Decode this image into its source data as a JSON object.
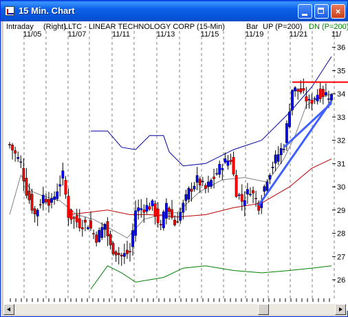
{
  "window": {
    "title": "15 Min. Chart",
    "buttons": {
      "minimize": "",
      "maximize": "",
      "close": "×"
    }
  },
  "header": {
    "mode": "Intraday",
    "scale_side": "(Right)",
    "symbol_line": "LLTC - LINEAR TECHNOLOGY CORP  (15-Min)",
    "chart_style": "Bar",
    "up_label": "UP (P=200)",
    "down_label": "DN (P=200)"
  },
  "colors": {
    "up_bar": "#0000ff",
    "down_bar": "#ff0000",
    "upper_band": "#0000a0",
    "lower_band": "#008000",
    "long_ma": "#c00000",
    "short_ma": "#808080",
    "resistance": "#ff0000",
    "trendline": "#4060ff",
    "up_label": "#000000",
    "down_label": "#008000"
  },
  "chart_data": {
    "type": "candlestick",
    "x_tick_labels": [
      "11/05",
      "11/07",
      "11/11",
      "11/13",
      "11/15",
      "11/19",
      "11/21",
      "11/"
    ],
    "y_tick_labels": [
      "36",
      "35",
      "34",
      "33",
      "32",
      "31",
      "30",
      "29",
      "28",
      "27",
      "26"
    ],
    "ylim": [
      25.2,
      36.7
    ],
    "grid": "vertical dashed",
    "price_path": [
      [
        0,
        31.8
      ],
      [
        4,
        31.0
      ],
      [
        6,
        29.8
      ],
      [
        9,
        28.8
      ],
      [
        12,
        29.6
      ],
      [
        15,
        29.3
      ],
      [
        19,
        30.5
      ],
      [
        21,
        28.8
      ],
      [
        25,
        28.4
      ],
      [
        28,
        28.4
      ],
      [
        31,
        27.8
      ],
      [
        34,
        28.4
      ],
      [
        36,
        27.4
      ],
      [
        40,
        27.0
      ],
      [
        43,
        27.2
      ],
      [
        45,
        29.0
      ],
      [
        48,
        29.1
      ],
      [
        51,
        29.2
      ],
      [
        54,
        28.2
      ],
      [
        56,
        29.3
      ],
      [
        59,
        28.4
      ],
      [
        61,
        28.9
      ],
      [
        64,
        29.8
      ],
      [
        67,
        30.3
      ],
      [
        70,
        29.9
      ],
      [
        73,
        30.4
      ],
      [
        76,
        31.0
      ],
      [
        79,
        31.2
      ],
      [
        81,
        29.8
      ],
      [
        83,
        29.4
      ],
      [
        86,
        29.9
      ],
      [
        89,
        29.2
      ],
      [
        92,
        30.4
      ],
      [
        95,
        31.2
      ],
      [
        98,
        31.8
      ],
      [
        101,
        34.2
      ],
      [
        104,
        34.1
      ],
      [
        107,
        33.6
      ],
      [
        110,
        34.0
      ],
      [
        113,
        34.0
      ],
      [
        115,
        33.9
      ]
    ],
    "bars": 116,
    "overlays": {
      "upper_band": [
        [
          29,
          32.4
        ],
        [
          35,
          32.4
        ],
        [
          40,
          31.7
        ],
        [
          45,
          31.6
        ],
        [
          50,
          32.2
        ],
        [
          55,
          32.2
        ],
        [
          57,
          31.5
        ],
        [
          62,
          30.9
        ],
        [
          70,
          31.0
        ],
        [
          80,
          31.6
        ],
        [
          90,
          32.0
        ],
        [
          100,
          33.2
        ],
        [
          108,
          34.3
        ],
        [
          115,
          35.6
        ]
      ],
      "lower_band": [
        [
          29,
          25.6
        ],
        [
          35,
          26.6
        ],
        [
          40,
          26.3
        ],
        [
          45,
          25.9
        ],
        [
          50,
          26.0
        ],
        [
          55,
          26.1
        ],
        [
          62,
          26.5
        ],
        [
          70,
          26.6
        ],
        [
          80,
          26.4
        ],
        [
          90,
          26.3
        ],
        [
          100,
          26.4
        ],
        [
          108,
          26.5
        ],
        [
          115,
          26.6
        ]
      ],
      "long_ma": [
        [
          21,
          28.8
        ],
        [
          28,
          28.9
        ],
        [
          35,
          29.0
        ],
        [
          43,
          28.8
        ],
        [
          50,
          28.8
        ],
        [
          60,
          28.7
        ],
        [
          70,
          28.8
        ],
        [
          80,
          29.1
        ],
        [
          90,
          29.3
        ],
        [
          100,
          30.0
        ],
        [
          108,
          30.8
        ],
        [
          115,
          31.2
        ]
      ],
      "short_ma": [
        [
          0,
          28.8
        ],
        [
          4,
          30.5
        ],
        [
          8,
          29.8
        ],
        [
          12,
          29.6
        ],
        [
          18,
          29.4
        ],
        [
          24,
          28.8
        ],
        [
          30,
          28.6
        ],
        [
          36,
          28.2
        ],
        [
          42,
          27.8
        ],
        [
          48,
          28.6
        ],
        [
          54,
          28.8
        ],
        [
          60,
          28.9
        ],
        [
          68,
          29.8
        ],
        [
          76,
          30.3
        ],
        [
          84,
          30.4
        ],
        [
          92,
          30.2
        ],
        [
          98,
          31.2
        ],
        [
          102,
          32.2
        ],
        [
          106,
          33.5
        ],
        [
          110,
          33.8
        ],
        [
          115,
          34.0
        ]
      ],
      "resistance_line": {
        "from_bar": 101,
        "to_bar": 116,
        "value": 34.5
      },
      "trendlines": [
        {
          "from": [
            89,
            29.2
          ],
          "to": [
            115,
            33.7
          ]
        },
        {
          "from": [
            98,
            31.7
          ],
          "to": [
            115,
            33.6
          ]
        }
      ]
    }
  }
}
